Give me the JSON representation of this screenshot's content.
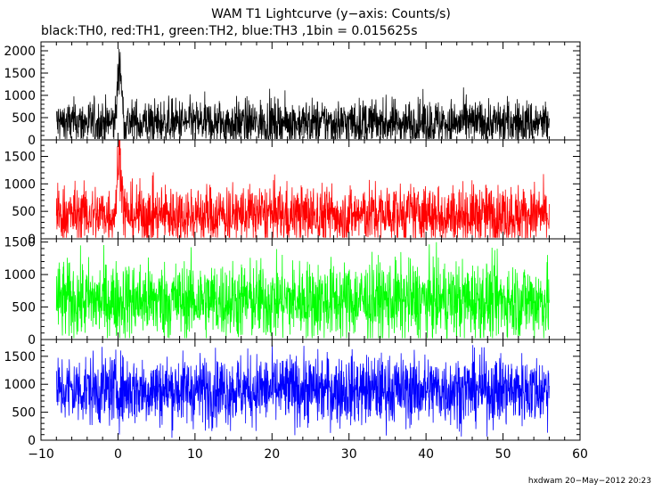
{
  "title": "WAM T1 Lightcurve (y−axis: Counts/s)",
  "subtitle": "black:TH0, red:TH1, green:TH2, blue:TH3 ,1bin = 0.015625s",
  "footer": "hxdwam 20−May−2012 20:23",
  "chart_data": {
    "type": "line",
    "x_axis": {
      "range": [
        -10,
        60
      ],
      "ticks": [
        "−10",
        "0",
        "10",
        "20",
        "30",
        "40",
        "50",
        "60"
      ],
      "tick_values": [
        -10,
        0,
        10,
        20,
        30,
        40,
        50,
        60
      ]
    },
    "x_data_range": [
      -8,
      56
    ],
    "bin_size_s": 0.015625,
    "panels": [
      {
        "name": "TH0",
        "color": "#000000",
        "ylim": [
          0,
          2200
        ],
        "y_ticks": [
          0,
          500,
          1000,
          1500,
          2000
        ],
        "y_tick_labels": [
          "0",
          "500",
          "1000",
          "1500",
          "2000"
        ],
        "baseline": 380,
        "spread": 260,
        "max_excursion": 1500,
        "burst": {
          "t": 0.2,
          "peak": 2200,
          "width": 0.35
        }
      },
      {
        "name": "TH1",
        "color": "#ff0000",
        "ylim": [
          0,
          1800
        ],
        "y_ticks": [
          0,
          500,
          1000,
          1500
        ],
        "y_tick_labels": [
          "0",
          "500",
          "1000",
          "1500"
        ],
        "baseline": 440,
        "spread": 270,
        "max_excursion": 1450,
        "burst": {
          "t": 0.2,
          "peak": 1800,
          "width": 0.4
        }
      },
      {
        "name": "TH2",
        "color": "#00ff00",
        "ylim": [
          0,
          1550
        ],
        "y_ticks": [
          0,
          500,
          1000,
          1500
        ],
        "y_tick_labels": [
          "0",
          "500",
          "1000",
          "1500"
        ],
        "baseline": 600,
        "spread": 300,
        "max_excursion": 1500,
        "burst": null
      },
      {
        "name": "TH3",
        "color": "#0000ff",
        "ylim": [
          0,
          1800
        ],
        "y_ticks": [
          0,
          500,
          1000,
          1500
        ],
        "y_tick_labels": [
          "0",
          "500",
          "1000",
          "1500"
        ],
        "baseline": 900,
        "spread": 310,
        "max_excursion": 1700,
        "burst": null
      }
    ]
  }
}
